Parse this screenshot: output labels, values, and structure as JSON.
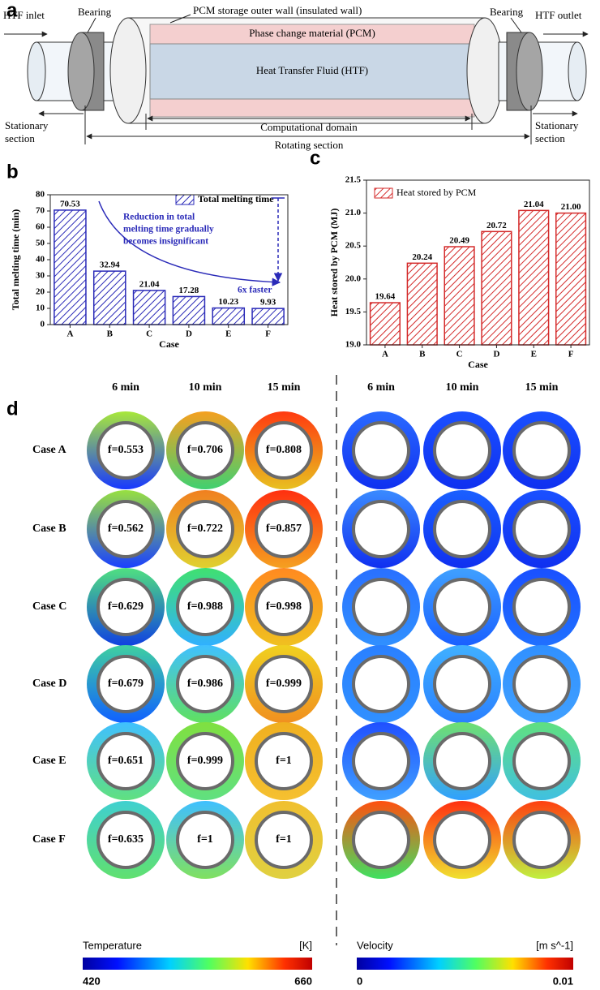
{
  "panel_a": {
    "label": "a",
    "htf_inlet": "HTF inlet",
    "bearing_left": "Bearing",
    "outer_wall": "PCM storage outer wall (insulated wall)",
    "bearing_right": "Bearing",
    "htf_outlet": "HTF outlet",
    "pcm": "Phase change material (PCM)",
    "htf": "Heat Transfer Fluid (HTF)",
    "stationary_left": [
      "Stationary",
      "section"
    ],
    "computational_domain": "Computational domain",
    "rotating_section": "Rotating section",
    "stationary_right": [
      "Stationary",
      "section"
    ]
  },
  "chart_data": [
    {
      "type": "bar",
      "label": "b",
      "ylabel": "Total melting time (min)",
      "xlabel": "Case",
      "categories": [
        "A",
        "B",
        "C",
        "D",
        "E",
        "F"
      ],
      "series": [
        {
          "name": "Total melting time",
          "color": "#2a2ab8",
          "values": [
            70.53,
            32.94,
            21.04,
            17.28,
            10.23,
            9.93
          ]
        }
      ],
      "ylim": [
        0,
        80
      ],
      "yticks": [
        0,
        10,
        20,
        30,
        40,
        50,
        60,
        70,
        80
      ],
      "legend": "upper right",
      "annotations": [
        {
          "lines": [
            "Reduction in total",
            "melting time gradually",
            "becomes insignificant"
          ]
        },
        {
          "lines": [
            "6x faster"
          ]
        }
      ]
    },
    {
      "type": "bar",
      "label": "c",
      "ylabel": "Heat stored by PCM (MJ)",
      "xlabel": "Case",
      "categories": [
        "A",
        "B",
        "C",
        "D",
        "E",
        "F"
      ],
      "series": [
        {
          "name": "Heat stored by PCM",
          "color": "#d42a2a",
          "values": [
            19.64,
            20.24,
            20.49,
            20.72,
            21.04,
            21.0
          ],
          "value_labels": [
            "19.64",
            "20.24",
            "20.49",
            "20.72",
            "21.04",
            "21.00"
          ]
        }
      ],
      "ylim": [
        19.0,
        21.5
      ],
      "yticks": [
        {
          "value": 19.0,
          "label": "19.0"
        },
        {
          "value": 19.5,
          "label": "19.5"
        },
        {
          "value": 20.0,
          "label": "20.0"
        },
        {
          "value": 20.5,
          "label": "20.5"
        },
        {
          "value": 21.0,
          "label": "21.0"
        },
        {
          "value": 21.5,
          "label": "21.5"
        }
      ],
      "legend": "upper left"
    }
  ],
  "panel_d": {
    "label": "d",
    "columns": [
      "6 min",
      "10 min",
      "15 min",
      "6 min",
      "10 min",
      "15 min"
    ],
    "rows": [
      {
        "label": "Case A",
        "f": [
          "f=0.553",
          "f=0.706",
          "f=0.808"
        ]
      },
      {
        "label": "Case B",
        "f": [
          "f=0.562",
          "f=0.722",
          "f=0.857"
        ]
      },
      {
        "label": "Case C",
        "f": [
          "f=0.629",
          "f=0.988",
          "f=0.998"
        ]
      },
      {
        "label": "Case D",
        "f": [
          "f=0.679",
          "f=0.986",
          "f=0.999"
        ]
      },
      {
        "label": "Case E",
        "f": [
          "f=0.651",
          "f=0.999",
          "f=1"
        ]
      },
      {
        "label": "Case F",
        "f": [
          "f=0.635",
          "f=1",
          "f=1"
        ]
      }
    ],
    "temperature_scale": {
      "title": "Temperature",
      "unit": "[K]",
      "range": [
        420,
        660
      ]
    },
    "velocity_scale": {
      "title": "Velocity",
      "unit": "[m s^-1]",
      "range": [
        0,
        0.01
      ]
    }
  }
}
